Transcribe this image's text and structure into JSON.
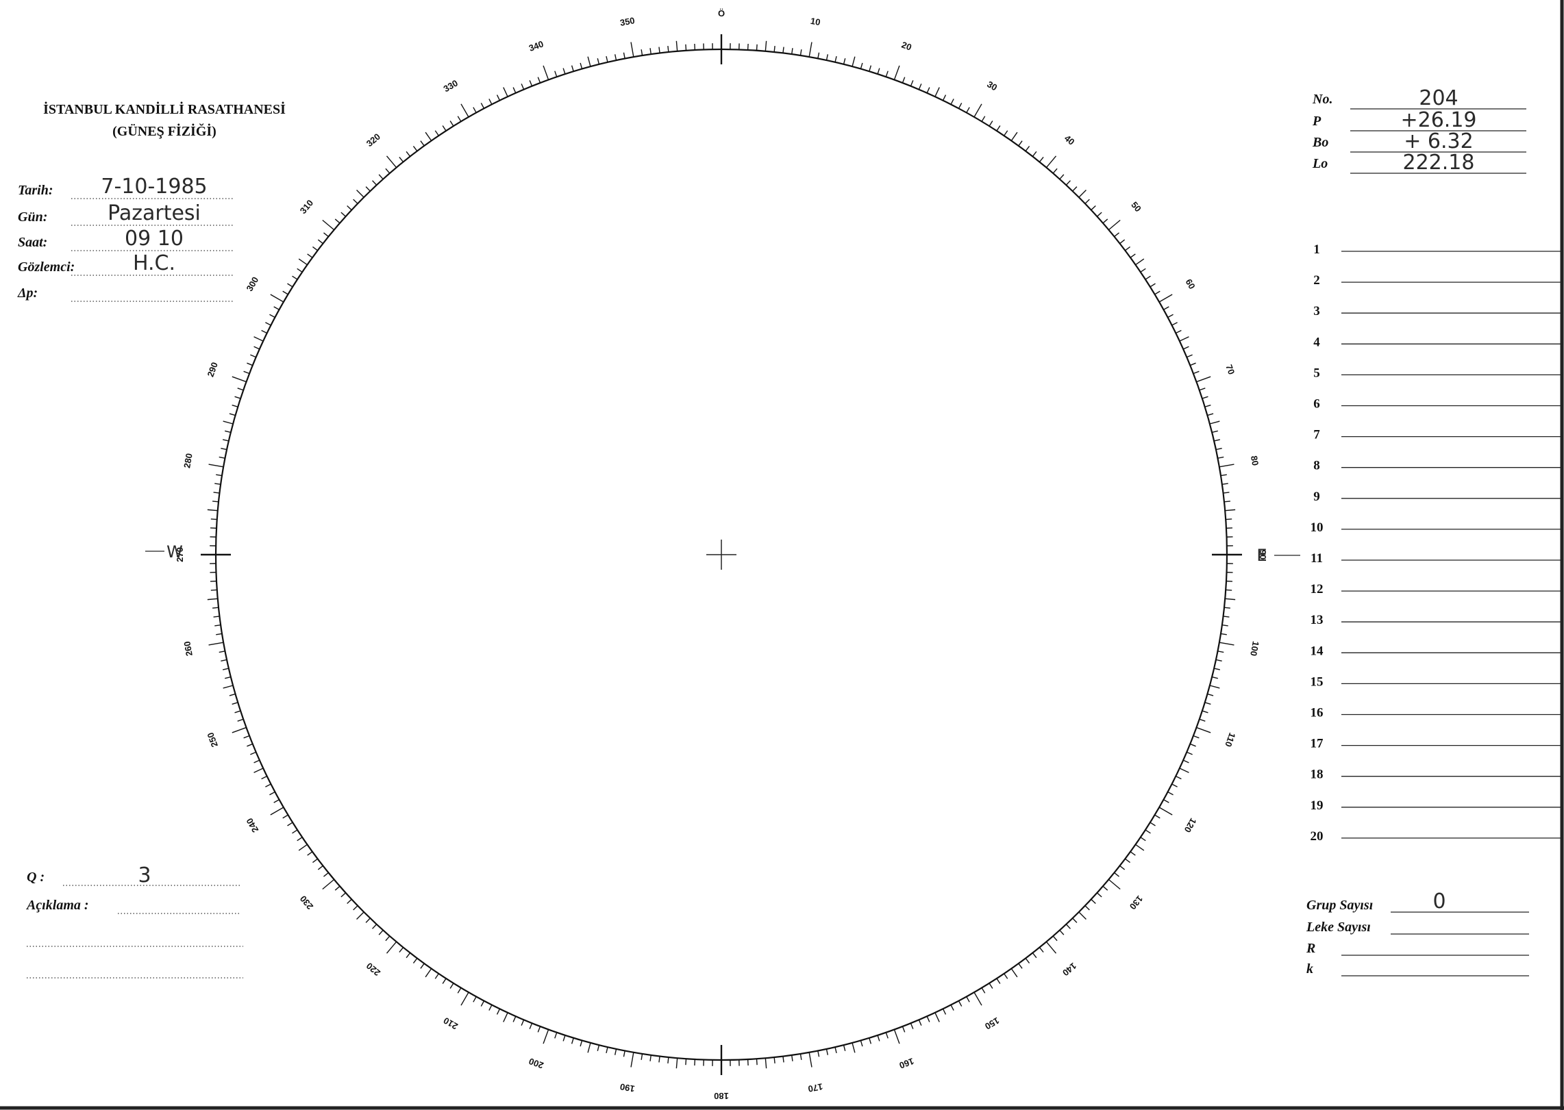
{
  "header": {
    "title": "İSTANBUL KANDİLLİ RASATHANESİ",
    "subtitle": "(GÜNEŞ FİZİĞİ)"
  },
  "observation": [
    {
      "label": "Tarih:",
      "value": "7-10-1985"
    },
    {
      "label": "Gün:",
      "value": "Pazartesi"
    },
    {
      "label": "Saat:",
      "value": "09 10"
    },
    {
      "label": "Gözlemci:",
      "value": "H.C."
    },
    {
      "label": "Δp:"
    }
  ],
  "solar_parameters": [
    {
      "label": "No.",
      "value": "204"
    },
    {
      "label": "P",
      "value": "+26.19"
    },
    {
      "label": "Bo",
      "value": "+ 6.32"
    },
    {
      "label": "Lo",
      "value": "222.18"
    }
  ],
  "group_lines": [
    "1",
    "2",
    "3",
    "4",
    "5",
    "6",
    "7",
    "8",
    "9",
    "10",
    "11",
    "12",
    "13",
    "14",
    "15",
    "16",
    "17",
    "18",
    "19",
    "20"
  ],
  "dial": {
    "labels": [
      "Ö",
      "10",
      "20",
      "30",
      "40",
      "50",
      "60",
      "70",
      "80",
      "90",
      "100",
      "110",
      "120",
      "130",
      "140",
      "150",
      "160",
      "170",
      "180",
      "190",
      "200",
      "210",
      "220",
      "230",
      "240",
      "250",
      "260",
      "270",
      "280",
      "290",
      "300",
      "310",
      "320",
      "330",
      "340",
      "350"
    ],
    "west": "W",
    "east": "E"
  },
  "quality": {
    "label": "Q :",
    "value": "3"
  },
  "remarks": {
    "label": "Açıklama :"
  },
  "counts": [
    {
      "label": "Grup Sayısı",
      "value": "0"
    },
    {
      "label": "Leke Sayısı"
    },
    {
      "label": "R"
    },
    {
      "label": "k"
    }
  ]
}
